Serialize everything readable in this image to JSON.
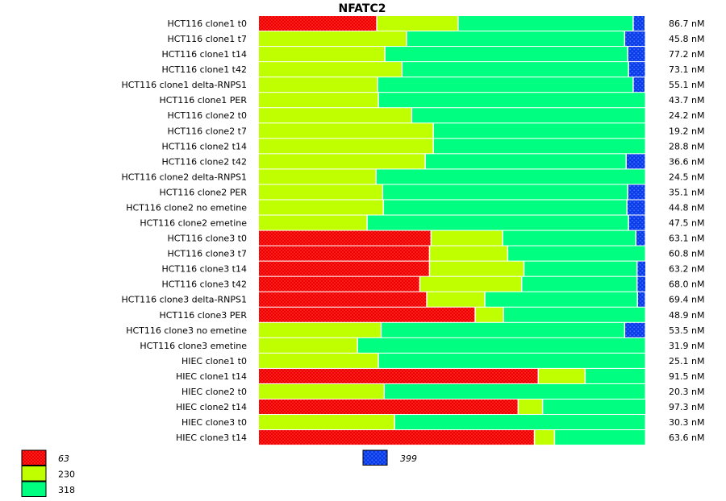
{
  "chart_data": {
    "type": "bar",
    "orientation": "horizontal",
    "stacked": true,
    "normalized_percent": true,
    "title": "NFATC2",
    "xlabel": "",
    "ylabel": "",
    "xlim": [
      0,
      100
    ],
    "series_names": [
      "63",
      "230",
      "318",
      "399"
    ],
    "series_colors": [
      "#ff0000",
      "#c0ff00",
      "#00ff80",
      "#1040ff"
    ],
    "legend": [
      {
        "label": "63",
        "italic": true
      },
      {
        "label": "230",
        "italic": false
      },
      {
        "label": "318",
        "italic": false
      },
      {
        "label": "399",
        "italic": true
      }
    ],
    "categories": [
      "HCT116 clone1 t0",
      "HCT116 clone1 t7",
      "HCT116 clone1 t14",
      "HCT116 clone1 t42",
      "HCT116 clone1 delta-RNPS1",
      "HCT116 clone1 PER",
      "HCT116 clone2 t0",
      "HCT116 clone2 t7",
      "HCT116 clone2 t14",
      "HCT116 clone2 t42",
      "HCT116 clone2 delta-RNPS1",
      "HCT116 clone2 PER",
      "HCT116 clone2 no emetine",
      "HCT116 clone2 emetine",
      "HCT116 clone3 t0",
      "HCT116 clone3 t7",
      "HCT116 clone3 t14",
      "HCT116 clone3 t42",
      "HCT116 clone3 delta-RNPS1",
      "HCT116 clone3 PER",
      "HCT116 clone3 no emetine",
      "HCT116 clone3 emetine",
      "HIEC clone1 t0",
      "HIEC clone1 t14",
      "HIEC clone2 t0",
      "HIEC clone2 t14",
      "HIEC clone3 t0",
      "HIEC clone3 t14"
    ],
    "totals": [
      "86.7 nM",
      "45.8 nM",
      "77.2 nM",
      "73.1 nM",
      "55.1 nM",
      "43.7 nM",
      "24.2 nM",
      "19.2 nM",
      "28.8 nM",
      "36.6 nM",
      "24.5 nM",
      "35.1 nM",
      "44.8 nM",
      "47.5 nM",
      "63.1 nM",
      "60.8 nM",
      "63.2 nM",
      "68.0 nM",
      "69.4 nM",
      "48.9 nM",
      "53.5 nM",
      "31.9 nM",
      "25.1 nM",
      "91.5 nM",
      "20.3 nM",
      "97.3 nM",
      "30.3 nM",
      "63.6 nM"
    ],
    "series": [
      {
        "name": "63",
        "values": [
          30.6,
          0,
          0,
          0,
          0,
          0,
          0,
          0,
          0,
          0,
          0,
          0,
          0,
          0,
          44.6,
          44.2,
          44.2,
          41.7,
          43.5,
          56.0,
          0,
          0,
          0,
          72.3,
          0,
          67.1,
          0,
          71.3
        ]
      },
      {
        "name": "230",
        "values": [
          21.0,
          38.3,
          32.7,
          37.1,
          30.8,
          31.0,
          39.6,
          45.2,
          45.2,
          43.1,
          30.4,
          32.1,
          32.3,
          28.1,
          18.5,
          20.2,
          24.4,
          26.3,
          15.0,
          7.3,
          31.7,
          25.6,
          31.0,
          12.1,
          32.5,
          6.3,
          35.2,
          5.2
        ]
      },
      {
        "name": "318",
        "values": [
          45.2,
          56.3,
          62.7,
          58.5,
          66.0,
          69.0,
          60.4,
          54.8,
          54.8,
          51.9,
          69.6,
          63.3,
          62.9,
          67.5,
          34.4,
          35.6,
          29.2,
          29.8,
          39.4,
          36.7,
          62.9,
          74.4,
          69.0,
          15.6,
          67.5,
          26.7,
          64.8,
          23.5
        ]
      },
      {
        "name": "399",
        "values": [
          3.1,
          5.4,
          4.6,
          4.4,
          3.1,
          0,
          0,
          0,
          0,
          5.0,
          0,
          4.6,
          4.8,
          4.4,
          2.5,
          0,
          2.3,
          2.3,
          2.1,
          0,
          5.4,
          0,
          0,
          0,
          0,
          0,
          0,
          0
        ]
      }
    ]
  }
}
